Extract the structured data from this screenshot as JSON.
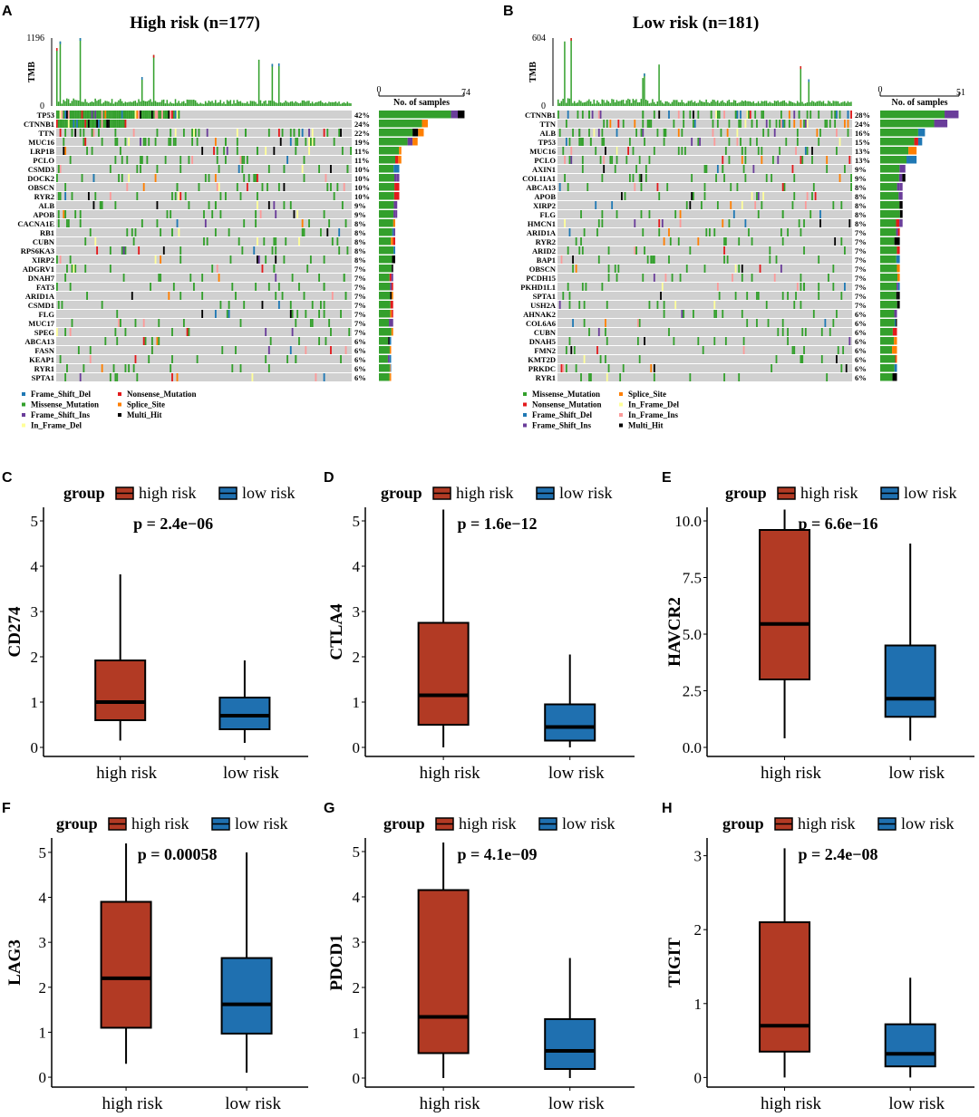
{
  "colors": {
    "Missense_Mutation": "#33a02c",
    "Frame_Shift_Del": "#1f78b4",
    "Nonsense_Mutation": "#e31a1c",
    "Frame_Shift_Ins": "#6a3d9a",
    "In_Frame_Del": "#ffff99",
    "Splice_Site": "#ff7f00",
    "Multi_Hit": "#000000",
    "In_Frame_Ins": "#fb9a99",
    "none": "#d0d0d0",
    "high_risk": "#b23a24",
    "low_risk": "#1f70b0"
  },
  "chart_data": [
    {
      "panel": "A",
      "type": "oncoplot",
      "title": "High risk (n=177)",
      "tmb_label": "TMB",
      "tmb_ticks": [
        "1196",
        "0"
      ],
      "side_axis_label": "No. of samples",
      "side_ticks": [
        "0",
        "74"
      ],
      "side_max": 74,
      "n": 177,
      "genes": [
        "TP53",
        "CTNNB1",
        "TTN",
        "MUC16",
        "LRP1B",
        "PCLO",
        "CSMD3",
        "DOCK2",
        "OBSCN",
        "RYR2",
        "ALB",
        "APOB",
        "CACNA1E",
        "RB1",
        "CUBN",
        "RPS6KA3",
        "XIRP2",
        "ADGRV1",
        "DNAH7",
        "FAT3",
        "ARID1A",
        "CSMD1",
        "FLG",
        "MUC17",
        "SPEG",
        "ABCA13",
        "FASN",
        "KEAP1",
        "RYR1",
        "SPTA1"
      ],
      "percent_labels": [
        "42%",
        "24%",
        "22%",
        "19%",
        "11%",
        "11%",
        "10%",
        "10%",
        "10%",
        "10%",
        "9%",
        "9%",
        "8%",
        "8%",
        "8%",
        "8%",
        "8%",
        "7%",
        "7%",
        "7%",
        "7%",
        "7%",
        "7%",
        "7%",
        "7%",
        "6%",
        "6%",
        "6%",
        "6%",
        "6%"
      ],
      "legend": [
        "Frame_Shift_Del",
        "Missense_Mutation",
        "Frame_Shift_Ins",
        "In_Frame_Del",
        "Nonsense_Mutation",
        "Splice_Site",
        "Multi_Hit"
      ]
    },
    {
      "panel": "B",
      "type": "oncoplot",
      "title": "Low risk (n=181)",
      "tmb_label": "TMB",
      "tmb_ticks": [
        "604",
        "0"
      ],
      "side_axis_label": "No. of samples",
      "side_ticks": [
        "0",
        "51"
      ],
      "side_max": 51,
      "n": 181,
      "genes": [
        "CTNNB1",
        "TTN",
        "ALB",
        "TP53",
        "MUC16",
        "PCLO",
        "AXIN1",
        "COL11A1",
        "ABCA13",
        "APOB",
        "XIRP2",
        "FLG",
        "HMCN1",
        "ARID1A",
        "RYR2",
        "ARID2",
        "BAP1",
        "OBSCN",
        "PCDH15",
        "PKHD1L1",
        "SPTA1",
        "USH2A",
        "AHNAK2",
        "COL6A6",
        "CUBN",
        "DNAH5",
        "FMN2",
        "KMT2D",
        "PRKDC",
        "RYR1"
      ],
      "percent_labels": [
        "28%",
        "24%",
        "16%",
        "15%",
        "13%",
        "13%",
        "9%",
        "9%",
        "8%",
        "8%",
        "8%",
        "8%",
        "8%",
        "7%",
        "7%",
        "7%",
        "7%",
        "7%",
        "7%",
        "7%",
        "7%",
        "7%",
        "6%",
        "6%",
        "6%",
        "6%",
        "6%",
        "6%",
        "6%",
        "6%"
      ],
      "legend": [
        "Missense_Mutation",
        "Nonsense_Mutation",
        "Frame_Shift_Del",
        "Frame_Shift_Ins",
        "Splice_Site",
        "In_Frame_Del",
        "In_Frame_Ins",
        "Multi_Hit"
      ]
    },
    {
      "panel": "C",
      "type": "box",
      "ylabel": "CD274",
      "p_label": "p = 2.4e−06",
      "legend_title": "group",
      "categories": [
        "high risk",
        "low risk"
      ],
      "yticks": [
        "0",
        "1",
        "2",
        "3",
        "4",
        "5"
      ],
      "ytick_values": [
        0,
        1,
        2,
        3,
        4,
        5
      ],
      "ylim": [
        -0.2,
        5.3
      ],
      "series": [
        {
          "name": "high risk",
          "min": 0.15,
          "q1": 0.6,
          "median": 1.0,
          "q3": 1.92,
          "max": 3.82
        },
        {
          "name": "low risk",
          "min": 0.1,
          "q1": 0.4,
          "median": 0.7,
          "q3": 1.1,
          "max": 1.92
        }
      ]
    },
    {
      "panel": "D",
      "type": "box",
      "ylabel": "CTLA4",
      "p_label": "p = 1.6e−12",
      "legend_title": "group",
      "categories": [
        "high risk",
        "low risk"
      ],
      "yticks": [
        "0",
        "1",
        "2",
        "3",
        "4",
        "5"
      ],
      "ytick_values": [
        0,
        1,
        2,
        3,
        4,
        5
      ],
      "ylim": [
        -0.2,
        5.3
      ],
      "series": [
        {
          "name": "high risk",
          "min": 0.0,
          "q1": 0.5,
          "median": 1.15,
          "q3": 2.75,
          "max": 5.25
        },
        {
          "name": "low risk",
          "min": 0.0,
          "q1": 0.15,
          "median": 0.45,
          "q3": 0.95,
          "max": 2.05
        }
      ]
    },
    {
      "panel": "E",
      "type": "box",
      "ylabel": "HAVCR2",
      "p_label": "p = 6.6e−16",
      "legend_title": "group",
      "categories": [
        "high risk",
        "low risk"
      ],
      "yticks": [
        "0.0",
        "2.5",
        "5.0",
        "7.5",
        "10.0"
      ],
      "ytick_values": [
        0,
        2.5,
        5,
        7.5,
        10
      ],
      "ylim": [
        -0.4,
        10.6
      ],
      "series": [
        {
          "name": "high risk",
          "min": 0.4,
          "q1": 3.0,
          "median": 5.45,
          "q3": 9.6,
          "max": 10.5
        },
        {
          "name": "low risk",
          "min": 0.3,
          "q1": 1.35,
          "median": 2.15,
          "q3": 4.5,
          "max": 9.0
        }
      ]
    },
    {
      "panel": "F",
      "type": "box",
      "ylabel": "LAG3",
      "p_label": "p = 0.00058",
      "legend_title": "group",
      "categories": [
        "high risk",
        "low risk"
      ],
      "yticks": [
        "0",
        "1",
        "2",
        "3",
        "4",
        "5"
      ],
      "ytick_values": [
        0,
        1,
        2,
        3,
        4,
        5
      ],
      "ylim": [
        -0.22,
        5.32
      ],
      "series": [
        {
          "name": "high risk",
          "min": 0.3,
          "q1": 1.1,
          "median": 2.2,
          "q3": 3.9,
          "max": 5.2
        },
        {
          "name": "low risk",
          "min": 0.1,
          "q1": 0.97,
          "median": 1.62,
          "q3": 2.65,
          "max": 5.0
        }
      ]
    },
    {
      "panel": "G",
      "type": "box",
      "ylabel": "PDCD1",
      "p_label": "p = 4.1e−09",
      "legend_title": "group",
      "categories": [
        "high risk",
        "low risk"
      ],
      "yticks": [
        "0",
        "1",
        "2",
        "3",
        "4",
        "5"
      ],
      "ytick_values": [
        0,
        1,
        2,
        3,
        4,
        5
      ],
      "ylim": [
        -0.2,
        5.3
      ],
      "series": [
        {
          "name": "high risk",
          "min": 0.0,
          "q1": 0.55,
          "median": 1.35,
          "q3": 4.15,
          "max": 5.2
        },
        {
          "name": "low risk",
          "min": 0.0,
          "q1": 0.2,
          "median": 0.6,
          "q3": 1.3,
          "max": 2.65
        }
      ]
    },
    {
      "panel": "H",
      "type": "box",
      "ylabel": "TIGIT",
      "p_label": "p = 2.4e−08",
      "legend_title": "group",
      "categories": [
        "high risk",
        "low risk"
      ],
      "yticks": [
        "0",
        "1",
        "2",
        "3"
      ],
      "ytick_values": [
        0,
        1,
        2,
        3
      ],
      "ylim": [
        -0.13,
        3.24
      ],
      "series": [
        {
          "name": "high risk",
          "min": 0.0,
          "q1": 0.35,
          "median": 0.7,
          "q3": 2.1,
          "max": 3.1
        },
        {
          "name": "low risk",
          "min": 0.0,
          "q1": 0.15,
          "median": 0.32,
          "q3": 0.72,
          "max": 1.35
        }
      ]
    }
  ]
}
